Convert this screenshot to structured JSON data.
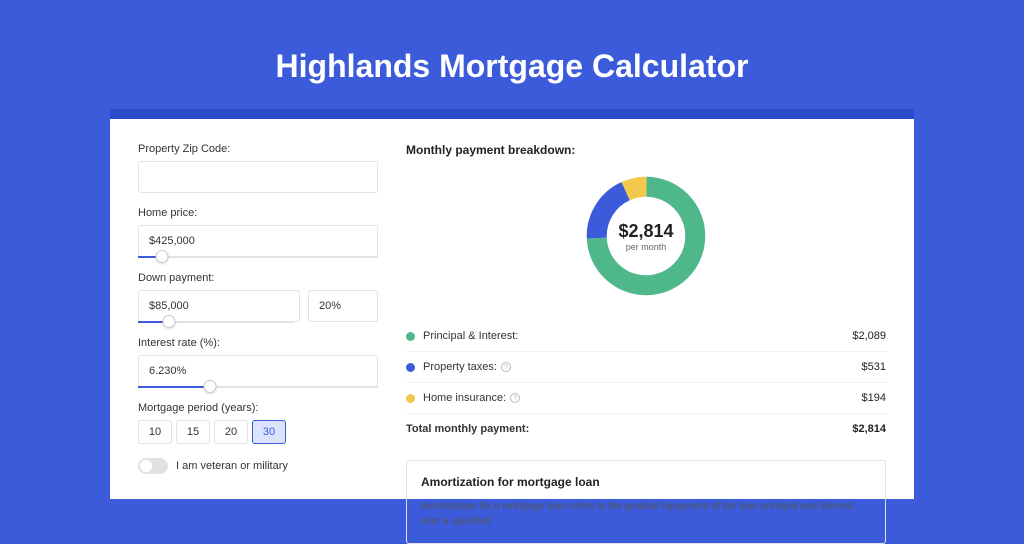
{
  "page_title": "Highlands Mortgage Calculator",
  "colors": {
    "page_bg": "#3b5bdb",
    "darkbar": "#2b4acb",
    "card_bg": "#ffffff",
    "accent": "#3b5bdb",
    "text": "#333333",
    "heading": "#222222",
    "input_border": "#e2e2e2",
    "divider": "#f0f0f0"
  },
  "form": {
    "zip": {
      "label": "Property Zip Code:",
      "value": ""
    },
    "home_price": {
      "label": "Home price:",
      "value": "$425,000",
      "slider_pct": 10
    },
    "down_payment": {
      "label": "Down payment:",
      "amount": "$85,000",
      "percent": "20%",
      "slider_pct": 20
    },
    "interest_rate": {
      "label": "Interest rate (%):",
      "value": "6.230%",
      "slider_pct": 30
    },
    "period": {
      "label": "Mortgage period (years):",
      "options": [
        "10",
        "15",
        "20",
        "30"
      ],
      "selected": "30"
    },
    "veteran": {
      "label": "I am veteran or military",
      "checked": false
    }
  },
  "breakdown": {
    "heading": "Monthly payment breakdown:",
    "donut": {
      "center_value": "$2,814",
      "center_sub": "per month",
      "segments": [
        {
          "label": "Principal & Interest",
          "value": 2089,
          "color": "#4fb88a"
        },
        {
          "label": "Property taxes",
          "value": 531,
          "color": "#3b5bdb"
        },
        {
          "label": "Home insurance",
          "value": 194,
          "color": "#f2c94c"
        }
      ],
      "ring_width": 20
    },
    "items": [
      {
        "dot": "#4fb88a",
        "label": "Principal & Interest:",
        "info": false,
        "value": "$2,089"
      },
      {
        "dot": "#3b5bdb",
        "label": "Property taxes:",
        "info": true,
        "value": "$531"
      },
      {
        "dot": "#f2c94c",
        "label": "Home insurance:",
        "info": true,
        "value": "$194"
      }
    ],
    "total": {
      "label": "Total monthly payment:",
      "value": "$2,814"
    }
  },
  "amortization": {
    "title": "Amortization for mortgage loan",
    "text": "Amortization for a mortgage loan refers to the gradual repayment of the loan principal and interest over a specified"
  }
}
